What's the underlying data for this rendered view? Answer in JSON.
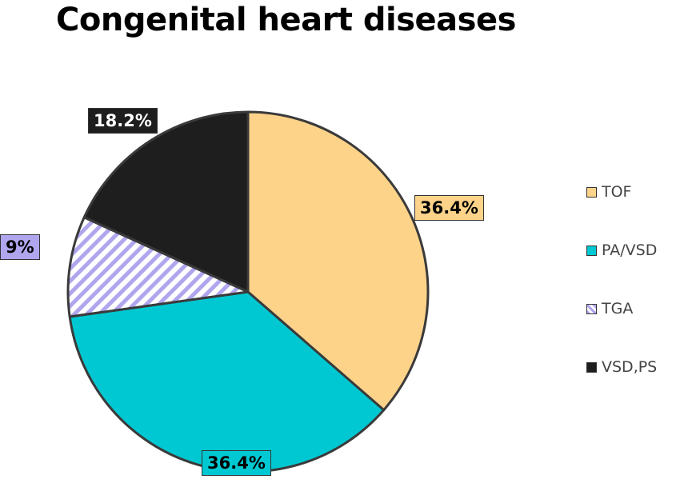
{
  "chart_data": {
    "type": "pie",
    "title": "Congenital heart diseases",
    "slices": [
      {
        "name": "TOF",
        "value": 36.4,
        "label": "36.4%",
        "color": "#FDD38A",
        "pattern": "solid"
      },
      {
        "name": "PA/VSD",
        "value": 36.4,
        "label": "36.4%",
        "color": "#00C8D2",
        "pattern": "solid"
      },
      {
        "name": "TGA",
        "value": 9,
        "label": "9%",
        "color": "#AFA6EE",
        "pattern": "hatched"
      },
      {
        "name": "VSD,PS",
        "value": 18.2,
        "label": "18.2%",
        "color": "#1E1E1E",
        "pattern": "solid"
      }
    ],
    "legend_position": "right",
    "start_angle": "12 o'clock",
    "direction": "clockwise"
  }
}
